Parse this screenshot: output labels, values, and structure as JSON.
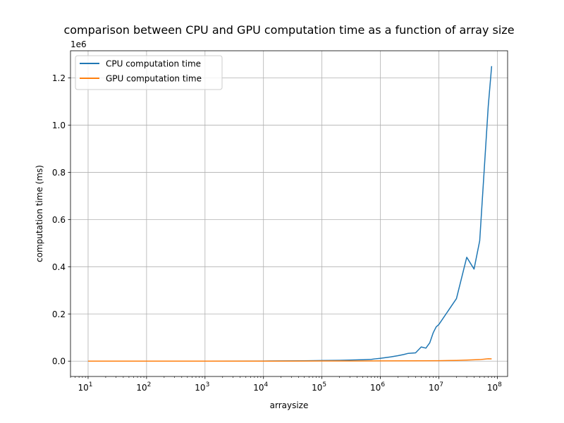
{
  "chart_data": {
    "type": "line",
    "title": "comparison between CPU and GPU computation time as a function of array size",
    "xlabel": "arraysize",
    "ylabel": "computation time (ms)",
    "x_scale": "log",
    "xlim": [
      5,
      150000000
    ],
    "ylim": [
      -65000,
      1315000
    ],
    "y_offset_label": "1e6",
    "x_ticks": [
      {
        "value": 10,
        "base": "10",
        "exp": "1"
      },
      {
        "value": 100,
        "base": "10",
        "exp": "2"
      },
      {
        "value": 1000,
        "base": "10",
        "exp": "3"
      },
      {
        "value": 10000,
        "base": "10",
        "exp": "4"
      },
      {
        "value": 100000,
        "base": "10",
        "exp": "5"
      },
      {
        "value": 1000000,
        "base": "10",
        "exp": "6"
      },
      {
        "value": 10000000,
        "base": "10",
        "exp": "7"
      },
      {
        "value": 100000000,
        "base": "10",
        "exp": "8"
      }
    ],
    "y_ticks": [
      {
        "value": 0,
        "label": "0.0"
      },
      {
        "value": 200000,
        "label": "0.2"
      },
      {
        "value": 400000,
        "label": "0.4"
      },
      {
        "value": 600000,
        "label": "0.6"
      },
      {
        "value": 800000,
        "label": "0.8"
      },
      {
        "value": 1000000,
        "label": "1.0"
      },
      {
        "value": 1200000,
        "label": "1.2"
      }
    ],
    "grid": true,
    "legend_position": "top-left",
    "series": [
      {
        "name": "CPU computation time",
        "color": "#1f77b4",
        "x": [
          10,
          100,
          1000,
          10000,
          50000,
          100000,
          200000,
          300000,
          500000,
          700000,
          800000,
          1000000,
          1500000,
          2000000,
          2500000,
          3000000,
          4000000,
          5000000,
          6000000,
          7000000,
          8000000,
          9000000,
          10000000,
          20000000,
          30000000,
          40000000,
          50000000,
          70000000,
          80000000
        ],
        "y": [
          0,
          0,
          0,
          500,
          1500,
          2500,
          3500,
          4500,
          6000,
          7500,
          9500,
          12000,
          18000,
          23000,
          28000,
          33000,
          35000,
          60000,
          55000,
          78000,
          120000,
          145000,
          155000,
          265000,
          440000,
          390000,
          510000,
          1080000,
          1250000
        ]
      },
      {
        "name": "GPU computation time",
        "color": "#ff7f0e",
        "x": [
          10,
          100,
          1000,
          10000,
          50000,
          100000,
          1000000,
          5000000,
          10000000,
          20000000,
          30000000,
          50000000,
          70000000,
          80000000
        ],
        "y": [
          0,
          0,
          0,
          0,
          500,
          600,
          1000,
          1500,
          2000,
          3000,
          4500,
          6500,
          10000,
          9500
        ]
      }
    ]
  }
}
